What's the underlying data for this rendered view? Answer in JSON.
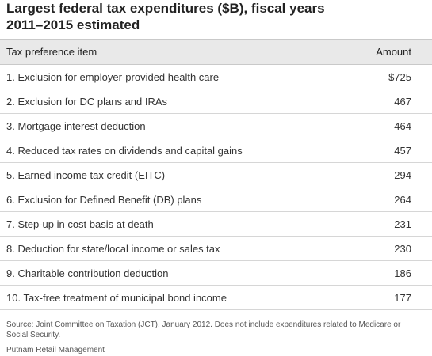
{
  "title_line1": "Largest federal tax expenditures ($B), fiscal years",
  "title_line2": "2011–2015 estimated",
  "chart_data": {
    "type": "table",
    "columns": [
      "Tax preference item",
      "Amount"
    ],
    "rows": [
      {
        "item": "1. Exclusion for employer-provided health care",
        "amount": "$725",
        "value": 725
      },
      {
        "item": "2. Exclusion for DC plans and IRAs",
        "amount": "467",
        "value": 467
      },
      {
        "item": "3. Mortgage interest deduction",
        "amount": "464",
        "value": 464
      },
      {
        "item": "4. Reduced tax rates on dividends and capital gains",
        "amount": "457",
        "value": 457
      },
      {
        "item": "5. Earned income tax credit (EITC)",
        "amount": "294",
        "value": 294
      },
      {
        "item": "6. Exclusion for Defined Benefit (DB) plans",
        "amount": "264",
        "value": 264
      },
      {
        "item": "7. Step-up in cost basis at death",
        "amount": "231",
        "value": 231
      },
      {
        "item": "8. Deduction for state/local income or sales tax",
        "amount": "230",
        "value": 230
      },
      {
        "item": "9. Charitable contribution deduction",
        "amount": "186",
        "value": 186
      },
      {
        "item": "10. Tax-free treatment of municipal bond income",
        "amount": "177",
        "value": 177
      }
    ]
  },
  "source_note": "Source: Joint Committee on Taxation (JCT), January 2012. Does not include expenditures related to Medicare or Social Security.",
  "brand": "Putnam Retail Management"
}
